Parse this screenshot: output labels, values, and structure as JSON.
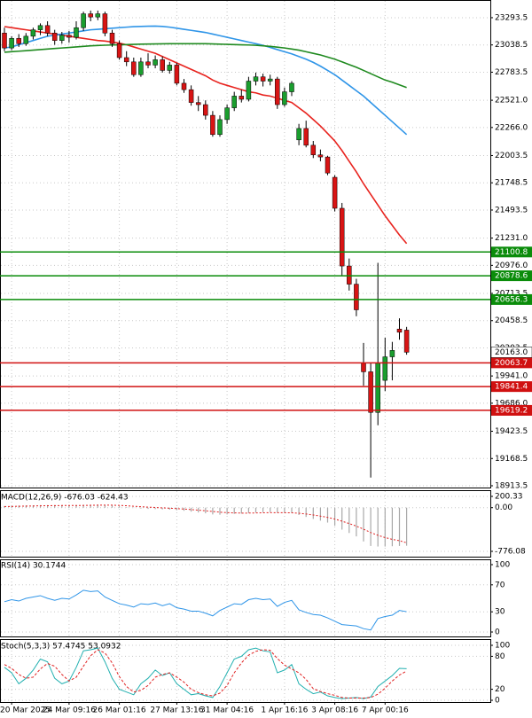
{
  "chart_data": [
    {
      "type": "candlestick",
      "up_color": "#1a9e2e",
      "down_color": "#d81414",
      "grid": true,
      "ylim": [
        18897,
        23459
      ],
      "yticks": [
        23293.5,
        23038.5,
        22783.5,
        {
          "value": 22521,
          "label": "22521.0"
        },
        {
          "value": 22266,
          "label": "22266.0"
        },
        22003.5,
        21748.5,
        21493.5,
        {
          "value": 21231,
          "label": "21231.0"
        },
        {
          "value": 20976,
          "label": "20976.0"
        },
        20713.5,
        20458.5,
        20203.5,
        {
          "value": 19941,
          "label": "19941.0"
        },
        {
          "value": 19686,
          "label": "19686.0"
        },
        19423.5,
        19168.5,
        18913.5
      ],
      "categories": [
        null,
        "20 Mar 2025",
        null,
        null,
        null,
        null,
        null,
        null,
        null,
        "24 Mar 09:16",
        null,
        null,
        null,
        null,
        null,
        null,
        "26 Mar 01:16",
        null,
        null,
        null,
        null,
        null,
        null,
        null,
        "27 Mar 13:16",
        null,
        null,
        null,
        null,
        null,
        null,
        "31 Mar 04:16",
        null,
        null,
        null,
        null,
        null,
        null,
        null,
        "1 Apr 16:16",
        null,
        null,
        null,
        null,
        null,
        null,
        "3 Apr 08:16",
        null,
        null,
        null,
        null,
        null,
        null,
        "7 Apr 00:16",
        null,
        null,
        null
      ],
      "ohlc": [
        [
          23150,
          23200,
          22980,
          23010
        ],
        [
          23010,
          23120,
          22990,
          23100
        ],
        [
          23100,
          23140,
          23020,
          23050
        ],
        [
          23050,
          23150,
          23030,
          23120
        ],
        [
          23120,
          23200,
          23090,
          23180
        ],
        [
          23180,
          23240,
          23130,
          23220
        ],
        [
          23220,
          23260,
          23120,
          23150
        ],
        [
          23150,
          23180,
          23040,
          23080
        ],
        [
          23080,
          23160,
          23050,
          23130
        ],
        [
          23130,
          23170,
          23060,
          23110
        ],
        [
          23110,
          23260,
          23090,
          23200
        ],
        [
          23200,
          23350,
          23170,
          23330
        ],
        [
          23330,
          23360,
          23260,
          23300
        ],
        [
          23300,
          23360,
          23270,
          23330
        ],
        [
          23330,
          23350,
          23120,
          23150
        ],
        [
          23150,
          23180,
          23020,
          23050
        ],
        [
          23050,
          23080,
          22900,
          22920
        ],
        [
          22920,
          22980,
          22840,
          22880
        ],
        [
          22880,
          22920,
          22740,
          22760
        ],
        [
          22760,
          22920,
          22740,
          22880
        ],
        [
          22880,
          22960,
          22820,
          22850
        ],
        [
          22850,
          22940,
          22820,
          22900
        ],
        [
          22900,
          22930,
          22780,
          22800
        ],
        [
          22800,
          22880,
          22770,
          22850
        ],
        [
          22850,
          22870,
          22660,
          22680
        ],
        [
          22680,
          22720,
          22590,
          22620
        ],
        [
          22620,
          22660,
          22470,
          22500
        ],
        [
          22500,
          22560,
          22420,
          22480
        ],
        [
          22480,
          22520,
          22340,
          22380
        ],
        [
          22380,
          22420,
          22180,
          22200
        ],
        [
          22200,
          22380,
          22180,
          22340
        ],
        [
          22340,
          22480,
          22300,
          22450
        ],
        [
          22450,
          22600,
          22420,
          22560
        ],
        [
          22560,
          22620,
          22500,
          22530
        ],
        [
          22530,
          22740,
          22510,
          22700
        ],
        [
          22700,
          22780,
          22660,
          22740
        ],
        [
          22740,
          22770,
          22650,
          22700
        ],
        [
          22700,
          22760,
          22660,
          22720
        ],
        [
          22720,
          22740,
          22440,
          22480
        ],
        [
          22480,
          22640,
          22460,
          22600
        ],
        [
          22600,
          22700,
          22560,
          22680
        ],
        [
          22150,
          22300,
          22100,
          22257
        ],
        [
          22257,
          22330,
          22080,
          22100
        ],
        [
          22100,
          22140,
          21980,
          22010
        ],
        [
          22010,
          22060,
          21950,
          21990
        ],
        [
          21990,
          22000,
          21820,
          21840
        ],
        [
          21800,
          21820,
          21480,
          21510
        ],
        [
          21510,
          21560,
          20880,
          20970
        ],
        [
          20970,
          21040,
          20740,
          20800
        ],
        [
          20800,
          20850,
          20500,
          20560
        ],
        [
          20060,
          20250,
          19850,
          19980
        ],
        [
          19980,
          20060,
          18990,
          19600
        ],
        [
          19600,
          21000,
          19480,
          20060
        ],
        [
          19900,
          20300,
          19800,
          20120
        ],
        [
          20120,
          20260,
          19900,
          20180
        ],
        [
          20380,
          20480,
          20280,
          20350
        ],
        [
          20370,
          20400,
          20140,
          20163
        ]
      ],
      "series": [
        {
          "color": "#e8231e",
          "values": [
            23210,
            23200,
            23190,
            23180,
            23170,
            23160,
            23150,
            23140,
            23130,
            23120,
            23110,
            23100,
            23090,
            23080,
            23075,
            23065,
            23055,
            23040,
            23020,
            23000,
            22980,
            22960,
            22930,
            22900,
            22870,
            22840,
            22810,
            22780,
            22750,
            22710,
            22680,
            22660,
            22640,
            22620,
            22600,
            22590,
            22570,
            22560,
            22540,
            22520,
            22500,
            22450,
            22400,
            22340,
            22280,
            22210,
            22140,
            22050,
            21950,
            21850,
            21740,
            21640,
            21540,
            21440,
            21350,
            21260,
            21180
          ]
        },
        {
          "color": "#2f95e8",
          "values": [
            23010,
            23020,
            23040,
            23060,
            23080,
            23100,
            23120,
            23130,
            23140,
            23150,
            23160,
            23170,
            23180,
            23185,
            23190,
            23195,
            23200,
            23205,
            23210,
            23212,
            23214,
            23215,
            23212,
            23205,
            23195,
            23185,
            23175,
            23165,
            23155,
            23140,
            23125,
            23110,
            23095,
            23080,
            23065,
            23050,
            23035,
            23015,
            22995,
            22975,
            22955,
            22930,
            22905,
            22875,
            22840,
            22800,
            22760,
            22710,
            22660,
            22610,
            22560,
            22500,
            22440,
            22380,
            22320,
            22260,
            22200
          ]
        },
        {
          "color": "#1f8a1f",
          "values": [
            22970,
            22975,
            22980,
            22985,
            22990,
            22995,
            23000,
            23005,
            23010,
            23015,
            23020,
            23025,
            23030,
            23033,
            23036,
            23038,
            23040,
            23042,
            23044,
            23046,
            23047,
            23048,
            23049,
            23050,
            23050,
            23050,
            23050,
            23050,
            23050,
            23048,
            23046,
            23044,
            23042,
            23040,
            23038,
            23035,
            23030,
            23025,
            23018,
            23010,
            23000,
            22990,
            22975,
            22960,
            22945,
            22925,
            22905,
            22880,
            22855,
            22830,
            22800,
            22770,
            22740,
            22710,
            22690,
            22665,
            22640
          ]
        }
      ],
      "levels": [
        {
          "value": 21100.8,
          "color": "#0a8c0a"
        },
        {
          "value": 20878.6,
          "color": "#0a8c0a"
        },
        {
          "value": 20656.3,
          "color": "#0a8c0a"
        },
        {
          "value": 20063.7,
          "color": "#d01010"
        },
        {
          "value": 19841.4,
          "color": "#d01010"
        },
        {
          "value": 19619.2,
          "color": "#d01010"
        }
      ],
      "last_price": {
        "value": 20163,
        "label": "20163.0"
      }
    },
    {
      "type": "macd",
      "title": "MACD(12,26,9) -676.03 -624.43",
      "ylim": [
        -776.08,
        200.33
      ],
      "yticks": [
        200.33,
        {
          "value": 0,
          "label": "0.00"
        },
        -776.08
      ],
      "series": [
        {
          "style": "histogram",
          "color": "#a8a8a8",
          "values": [
            30,
            35,
            38,
            40,
            42,
            45,
            46,
            44,
            42,
            40,
            42,
            48,
            52,
            55,
            50,
            40,
            25,
            10,
            -5,
            -15,
            -22,
            -25,
            -30,
            -35,
            -45,
            -55,
            -70,
            -85,
            -100,
            -120,
            -125,
            -120,
            -110,
            -105,
            -95,
            -85,
            -80,
            -78,
            -90,
            -95,
            -92,
            -130,
            -165,
            -200,
            -230,
            -265,
            -320,
            -390,
            -450,
            -510,
            -600,
            -680,
            -690,
            -690,
            -685,
            -680,
            -676.03
          ]
        },
        {
          "style": "dotted",
          "color": "#e02020",
          "values": [
            20,
            22,
            25,
            28,
            30,
            33,
            35,
            37,
            38,
            38,
            39,
            40,
            42,
            44,
            45,
            44,
            40,
            34,
            26,
            18,
            10,
            3,
            -4,
            -10,
            -17,
            -25,
            -34,
            -44,
            -55,
            -68,
            -80,
            -88,
            -93,
            -96,
            -96,
            -94,
            -91,
            -88,
            -89,
            -90,
            -91,
            -99,
            -112,
            -130,
            -150,
            -173,
            -202,
            -240,
            -282,
            -328,
            -382,
            -442,
            -491,
            -531,
            -562,
            -586,
            -624.43
          ]
        }
      ]
    },
    {
      "type": "line",
      "title": "RSI(14) 30.1744",
      "ylim": [
        0,
        100
      ],
      "yticks": [
        100,
        70,
        30,
        0
      ],
      "series": [
        {
          "style": "solid",
          "color": "#2f95e8",
          "values": [
            45,
            48,
            46,
            50,
            52,
            54,
            50,
            47,
            50,
            49,
            55,
            62,
            60,
            61,
            52,
            47,
            42,
            40,
            37,
            42,
            41,
            43,
            39,
            42,
            36,
            34,
            31,
            31,
            28,
            24,
            32,
            37,
            42,
            41,
            48,
            50,
            48,
            49,
            38,
            44,
            47,
            33,
            29,
            26,
            25,
            21,
            16,
            11,
            10,
            9,
            5,
            3,
            20,
            23,
            25,
            32,
            30.1744
          ]
        }
      ]
    },
    {
      "type": "line",
      "title": "Stoch(5,3,3) 57.4745 53.0932",
      "ylim": [
        0,
        100
      ],
      "yticks": [
        100,
        80,
        20,
        0
      ],
      "series": [
        {
          "style": "solid",
          "color": "#22b0b0",
          "values": [
            60,
            50,
            30,
            40,
            55,
            75,
            70,
            40,
            30,
            35,
            60,
            90,
            92,
            95,
            70,
            40,
            20,
            15,
            10,
            30,
            40,
            55,
            45,
            50,
            30,
            20,
            10,
            12,
            8,
            5,
            25,
            50,
            75,
            80,
            92,
            95,
            90,
            88,
            50,
            55,
            65,
            30,
            20,
            12,
            15,
            8,
            5,
            3,
            4,
            5,
            3,
            6,
            25,
            35,
            45,
            58,
            57.4745
          ]
        },
        {
          "style": "dashed",
          "color": "#e02020",
          "values": [
            65,
            58,
            47,
            40,
            42,
            57,
            67,
            62,
            47,
            35,
            42,
            62,
            81,
            92,
            86,
            68,
            43,
            25,
            15,
            18,
            27,
            42,
            47,
            50,
            42,
            33,
            20,
            14,
            10,
            8,
            13,
            27,
            50,
            68,
            82,
            89,
            92,
            91,
            76,
            64,
            57,
            50,
            38,
            21,
            16,
            12,
            9,
            5,
            4,
            4,
            4,
            5,
            11,
            22,
            35,
            46,
            53.0932
          ]
        }
      ]
    }
  ]
}
